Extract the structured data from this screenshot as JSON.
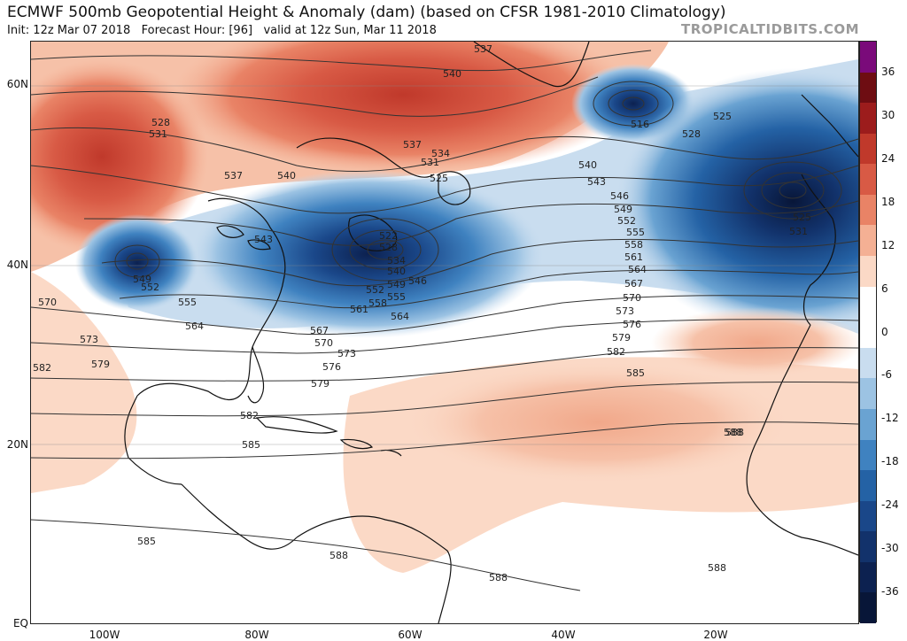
{
  "header": {
    "title": "ECMWF 500mb Geopotential Height & Anomaly (dam) (based on CFSR 1981-2010 Climatology)",
    "init": "Init: 12z Mar 07 2018",
    "forecast_hour": "Forecast Hour: [96]",
    "valid": "valid at 12z Sun, Mar 11 2018",
    "brand": "TROPICALTIDBITS.COM"
  },
  "axes": {
    "lat_labels": [
      "60N",
      "40N",
      "20N",
      "EQ"
    ],
    "lon_labels": [
      "100W",
      "80W",
      "60W",
      "40W",
      "20W"
    ]
  },
  "colorbar": {
    "labels": [
      "36",
      "30",
      "24",
      "18",
      "12",
      "6",
      "0",
      "-6",
      "-12",
      "-18",
      "-24",
      "-30",
      "-36"
    ],
    "colors": [
      "#7a0a7a",
      "#6e0d12",
      "#9c1c1c",
      "#c0392b",
      "#d85a45",
      "#e98366",
      "#f4b094",
      "#fbd9c6",
      "#ffffff",
      "#ffffff",
      "#c9ddef",
      "#9cc3e3",
      "#6aa3d2",
      "#3f82c0",
      "#2462a5",
      "#1a4789",
      "#12326b",
      "#0c2150",
      "#081638"
    ]
  },
  "contour_labels": [
    "537",
    "540",
    "528",
    "531",
    "537",
    "540",
    "537",
    "534",
    "531",
    "525",
    "540",
    "543",
    "516",
    "525",
    "528",
    "546",
    "549",
    "552",
    "555",
    "558",
    "561",
    "564",
    "567",
    "570",
    "573",
    "576",
    "579",
    "582",
    "585",
    "588",
    "522",
    "528",
    "534",
    "540",
    "546",
    "552",
    "549",
    "555",
    "558",
    "561",
    "564",
    "543",
    "549",
    "552",
    "555",
    "564",
    "570",
    "573",
    "579",
    "582",
    "567",
    "570",
    "573",
    "576",
    "579",
    "582",
    "585",
    "588",
    "588",
    "585",
    "588",
    "588",
    "525",
    "531"
  ]
}
